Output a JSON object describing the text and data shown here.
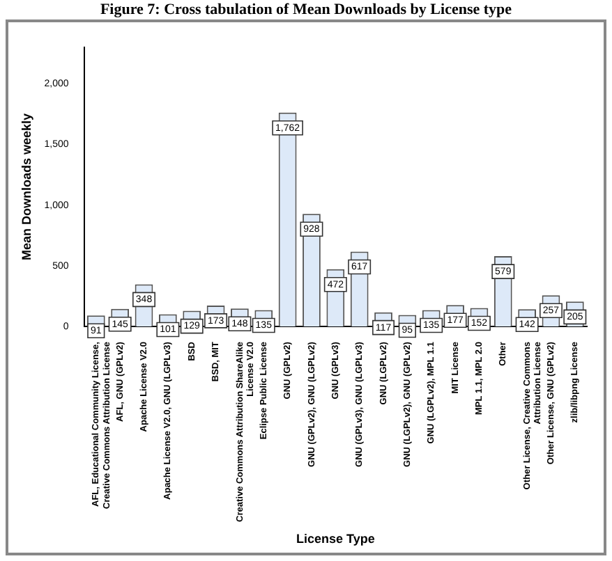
{
  "chart_data": {
    "type": "bar",
    "title": "Figure 7: Cross tabulation of Mean Downloads by License type",
    "xlabel": "License Type",
    "ylabel": "Mean Downloads weekly",
    "categories": [
      "AFL, Educational Community License, Creative Commons Attribution License",
      "AFL, GNU (GPLv2)",
      "Apache License V2.0",
      "Apache License V2.0, GNU (LGPLv3)",
      "BSD",
      "BSD, MIT",
      "Creative Commons Attribution ShareAlike License V2.0",
      "Eclipse Public License",
      "GNU (GPLv2)",
      "GNU (GPLv2), GNU (LGPLv2)",
      "GNU (GPLv3)",
      "GNU (GPLv3), GNU (LGPLv3)",
      "GNU (LGPLv2)",
      "GNU (LGPLv2), GNU (GPLv2)",
      "GNU (LGPLv2), MPL 1.1",
      "MIT License",
      "MPL 1.1, MPL 2.0",
      "Other",
      "Other License, Creative Commons Attribution License",
      "Other License, GNU (GPLv2)",
      "zlib/libpng License"
    ],
    "values": [
      91,
      145,
      348,
      101,
      129,
      173,
      148,
      135,
      1762,
      928,
      472,
      617,
      117,
      95,
      135,
      177,
      152,
      579,
      142,
      257,
      205
    ],
    "value_labels": [
      "91",
      "145",
      "348",
      "101",
      "129",
      "173",
      "148",
      "135",
      "1,762",
      "928",
      "472",
      "617",
      "117",
      "95",
      "135",
      "177",
      "152",
      "579",
      "142",
      "257",
      "205"
    ],
    "color": "#dde9f8",
    "ylim": [
      0,
      2300
    ],
    "yticks": [
      0,
      {
        "value": 500,
        "label": "500"
      },
      {
        "value": 1000,
        "label": "1,000"
      },
      {
        "value": 1500,
        "label": "1,500"
      },
      {
        "value": 2000,
        "label": "2,000"
      }
    ],
    "grid": false,
    "legend": false
  }
}
